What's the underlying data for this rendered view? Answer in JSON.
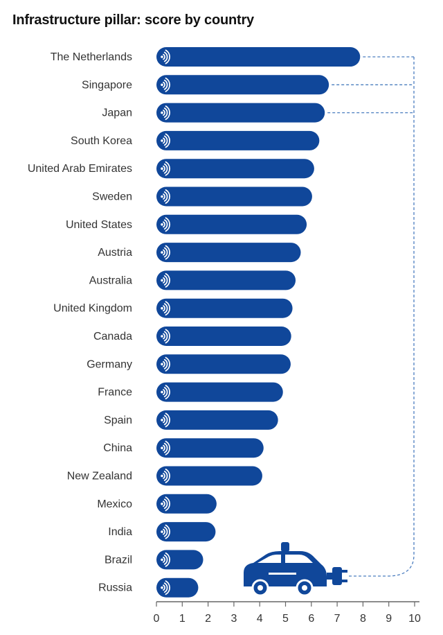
{
  "chart_data": {
    "type": "bar",
    "orientation": "horizontal",
    "title": "Infrastructure pillar: score by country",
    "categories": [
      "The Netherlands",
      "Singapore",
      "Japan",
      "South Korea",
      "United Arab Emirates",
      "Sweden",
      "United States",
      "Austria",
      "Australia",
      "United Kingdom",
      "Canada",
      "Germany",
      "France",
      "Spain",
      "China",
      "New Zealand",
      "Mexico",
      "India",
      "Brazil",
      "Russia"
    ],
    "values": [
      7.89,
      6.68,
      6.52,
      6.31,
      6.11,
      6.03,
      5.82,
      5.59,
      5.39,
      5.27,
      5.22,
      5.2,
      4.9,
      4.71,
      4.15,
      4.1,
      2.33,
      2.29,
      1.81,
      1.62
    ],
    "xlim": [
      0,
      10
    ],
    "xticks": [
      0,
      1,
      2,
      3,
      4,
      5,
      6,
      7,
      8,
      9,
      10
    ],
    "grid": false,
    "legend": "none",
    "colors": {
      "bar": "#10479a",
      "icon": "#ffffff",
      "connector": "#4a7dbf",
      "car": "#10479a"
    },
    "icons": {
      "bar_icon": "wireless-signal-icon",
      "car": "self-driving-car-icon",
      "plug": "plug-icon"
    }
  }
}
